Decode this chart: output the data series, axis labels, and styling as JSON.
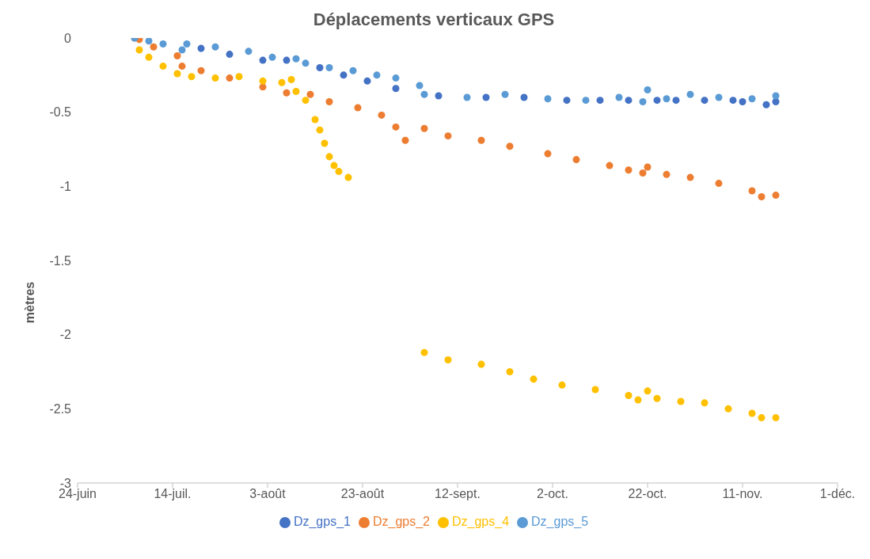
{
  "chart_data": {
    "type": "scatter",
    "title": "Déplacements verticaux GPS",
    "ylabel": "mètres",
    "xlim": [
      "--06-24",
      "--12-01"
    ],
    "xticks": [
      {
        "value": "--06-24",
        "label": "24-juin"
      },
      {
        "value": "--07-14",
        "label": "14-juil."
      },
      {
        "value": "--08-03",
        "label": "3-août"
      },
      {
        "value": "--08-23",
        "label": "23-août"
      },
      {
        "value": "--09-12",
        "label": "12-sept."
      },
      {
        "value": "--10-02",
        "label": "2-oct."
      },
      {
        "value": "--10-22",
        "label": "22-oct."
      },
      {
        "value": "--11-11",
        "label": "11-nov."
      },
      {
        "value": "--12-01",
        "label": "1-déc."
      }
    ],
    "ylim": [
      -3,
      0
    ],
    "yticks": [
      0,
      -0.5,
      -1,
      -1.5,
      -2,
      -2.5,
      -3
    ],
    "grid": false,
    "legend": "bottom",
    "marker": "circle",
    "series": [
      {
        "name": "Dz_gps_1",
        "color": "#4472c4",
        "x": [
          "--07-20",
          "--07-26",
          "--08-02",
          "--08-07",
          "--08-14",
          "--08-19",
          "--08-24",
          "--08-30",
          "--09-08",
          "--09-18",
          "--09-26",
          "--10-05",
          "--10-12",
          "--10-18",
          "--10-24",
          "--10-28",
          "--11-03",
          "--11-09",
          "--11-11",
          "--11-16",
          "--11-18"
        ],
        "values": [
          -0.07,
          -0.11,
          -0.15,
          -0.15,
          -0.2,
          -0.25,
          -0.29,
          -0.34,
          -0.39,
          -0.4,
          -0.4,
          -0.42,
          -0.42,
          -0.42,
          -0.42,
          -0.42,
          -0.42,
          -0.42,
          -0.43,
          -0.45,
          -0.43
        ]
      },
      {
        "name": "Dz_gps_2",
        "color": "#ed7d31",
        "x": [
          "--07-06",
          "--07-07",
          "--07-10",
          "--07-15",
          "--07-16",
          "--07-20",
          "--07-26",
          "--08-02",
          "--08-07",
          "--08-12",
          "--08-16",
          "--08-22",
          "--08-27",
          "--08-30",
          "--09-01",
          "--09-05",
          "--09-10",
          "--09-17",
          "--09-23",
          "--10-01",
          "--10-07",
          "--10-14",
          "--10-18",
          "--10-21",
          "--10-22",
          "--10-26",
          "--10-31",
          "--11-06",
          "--11-13",
          "--11-15",
          "--11-18"
        ],
        "values": [
          0,
          -0.01,
          -0.06,
          -0.12,
          -0.19,
          -0.22,
          -0.27,
          -0.33,
          -0.37,
          -0.38,
          -0.43,
          -0.47,
          -0.52,
          -0.6,
          -0.69,
          -0.61,
          -0.66,
          -0.69,
          -0.73,
          -0.78,
          -0.82,
          -0.86,
          -0.89,
          -0.91,
          -0.87,
          -0.92,
          -0.94,
          -0.98,
          -1.03,
          -1.07,
          -1.06
        ]
      },
      {
        "name": "Dz_gps_4",
        "color": "#ffc000",
        "x": [
          "--07-07",
          "--07-09",
          "--07-12",
          "--07-15",
          "--07-18",
          "--07-23",
          "--07-28",
          "--08-02",
          "--08-06",
          "--08-08",
          "--08-09",
          "--08-11",
          "--08-13",
          "--08-14",
          "--08-15",
          "--08-16",
          "--08-17",
          "--08-18",
          "--08-20",
          "--09-05",
          "--09-10",
          "--09-17",
          "--09-23",
          "--09-28",
          "--10-04",
          "--10-11",
          "--10-18",
          "--10-20",
          "--10-22",
          "--10-24",
          "--10-29",
          "--11-03",
          "--11-08",
          "--11-13",
          "--11-15",
          "--11-18"
        ],
        "values": [
          -0.08,
          -0.13,
          -0.19,
          -0.24,
          -0.26,
          -0.27,
          -0.26,
          -0.29,
          -0.3,
          -0.28,
          -0.36,
          -0.42,
          -0.55,
          -0.62,
          -0.71,
          -0.8,
          -0.86,
          -0.9,
          -0.94,
          -2.12,
          -2.17,
          -2.2,
          -2.25,
          -2.3,
          -2.34,
          -2.37,
          -2.41,
          -2.44,
          -2.38,
          -2.43,
          -2.45,
          -2.46,
          -2.5,
          -2.53,
          -2.56,
          -2.56
        ]
      },
      {
        "name": "Dz_gps_5",
        "color": "#5b9bd5",
        "x": [
          "--07-06",
          "--07-09",
          "--07-12",
          "--07-16",
          "--07-17",
          "--07-23",
          "--07-30",
          "--08-04",
          "--08-09",
          "--08-11",
          "--08-16",
          "--08-21",
          "--08-26",
          "--08-30",
          "--09-04",
          "--09-05",
          "--09-14",
          "--09-22",
          "--10-01",
          "--10-09",
          "--10-16",
          "--10-21",
          "--10-22",
          "--10-26",
          "--10-31",
          "--11-06",
          "--11-13",
          "--11-18"
        ],
        "values": [
          0,
          -0.02,
          -0.04,
          -0.08,
          -0.04,
          -0.06,
          -0.09,
          -0.13,
          -0.14,
          -0.17,
          -0.2,
          -0.22,
          -0.25,
          -0.27,
          -0.32,
          -0.38,
          -0.4,
          -0.38,
          -0.41,
          -0.42,
          -0.4,
          -0.43,
          -0.35,
          -0.41,
          -0.38,
          -0.4,
          -0.41,
          -0.39
        ]
      }
    ]
  }
}
